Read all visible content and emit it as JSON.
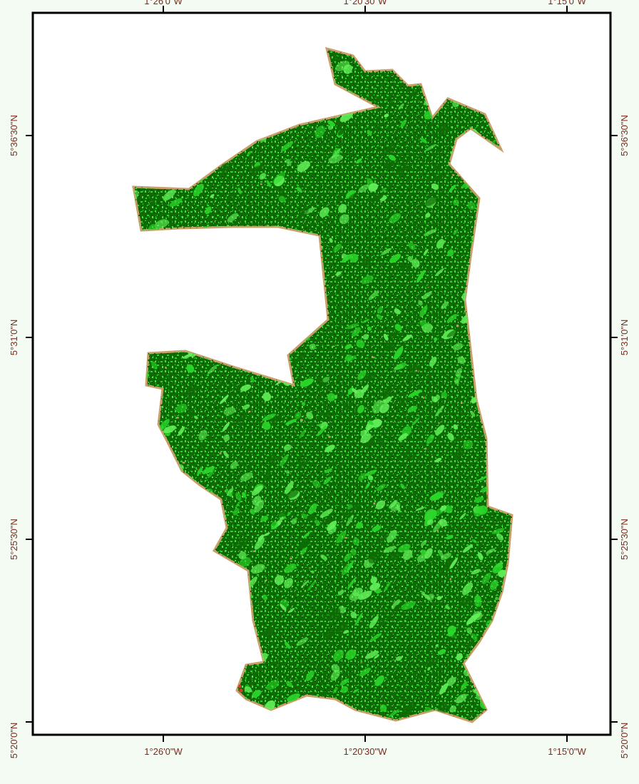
{
  "map": {
    "legend": "none",
    "colors": {
      "background": "#f4fbf3",
      "frame": "#000000",
      "label": "#7a2a1e",
      "dense_forest": "#0e6b05",
      "open_vegetation": "#2bd82b",
      "bright_vegetation": "#63f05a",
      "bare_soil": "#c7a06a",
      "settlement": "#d43a28"
    },
    "graticule": {
      "longitude_labels": [
        "1°26'0\"W",
        "1°20'30\"W",
        "1°15'0\"W"
      ],
      "latitude_labels": [
        "5°36'30\"N",
        "5°31'0\"N",
        "5°25'30\"N",
        "5°20'0\"N"
      ]
    }
  }
}
